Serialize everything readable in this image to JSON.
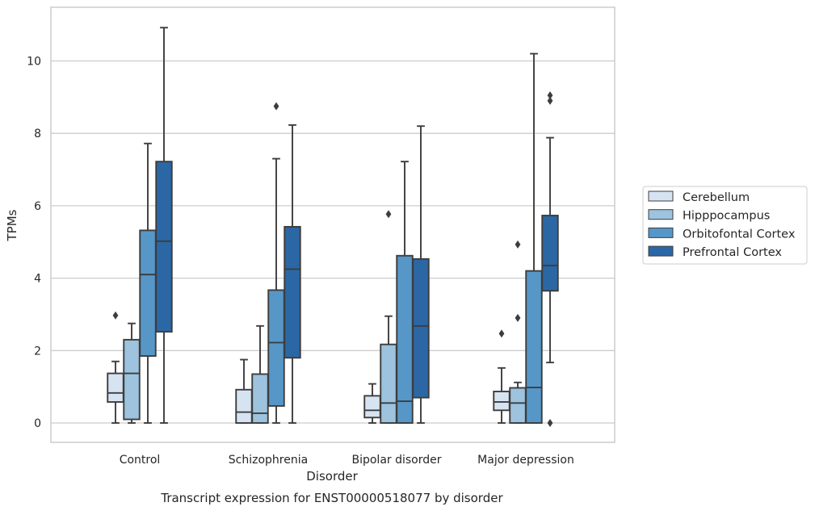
{
  "chart_data": {
    "type": "boxplot",
    "caption": "Transcript expression for ENST00000518077 by disorder",
    "xlabel": "Disorder",
    "ylabel": "TPMs",
    "ylim": [
      -0.5,
      11.5
    ],
    "yticks": [
      0,
      2,
      4,
      6,
      8,
      10
    ],
    "grid": "horizontal",
    "legend_position": "right",
    "categories": [
      "Control",
      "Schizophrenia",
      "Bipolar disorder",
      "Major depression"
    ],
    "series": [
      {
        "name": "Cerebellum",
        "color": "#d6e4f2",
        "boxes": [
          {
            "whisker_low": 0.0,
            "q1": 0.58,
            "median": 0.83,
            "q3": 1.37,
            "whisker_high": 1.7,
            "outliers": [
              2.97
            ]
          },
          {
            "whisker_low": 0.0,
            "q1": 0.0,
            "median": 0.3,
            "q3": 0.92,
            "whisker_high": 1.75,
            "outliers": []
          },
          {
            "whisker_low": 0.0,
            "q1": 0.15,
            "median": 0.35,
            "q3": 0.75,
            "whisker_high": 1.08,
            "outliers": []
          },
          {
            "whisker_low": 0.0,
            "q1": 0.35,
            "median": 0.58,
            "q3": 0.87,
            "whisker_high": 1.52,
            "outliers": [
              2.47
            ]
          }
        ]
      },
      {
        "name": "Hipppocampus",
        "color": "#9dc3de",
        "boxes": [
          {
            "whisker_low": 0.0,
            "q1": 0.1,
            "median": 1.37,
            "q3": 2.3,
            "whisker_high": 2.75,
            "outliers": []
          },
          {
            "whisker_low": 0.0,
            "q1": 0.0,
            "median": 0.27,
            "q3": 1.35,
            "whisker_high": 2.68,
            "outliers": []
          },
          {
            "whisker_low": 0.0,
            "q1": 0.0,
            "median": 0.55,
            "q3": 2.17,
            "whisker_high": 2.95,
            "outliers": [
              5.77
            ]
          },
          {
            "whisker_low": 0.0,
            "q1": 0.0,
            "median": 0.55,
            "q3": 0.97,
            "whisker_high": 1.12,
            "outliers": [
              2.9,
              4.93
            ]
          }
        ]
      },
      {
        "name": "Orbitofontal Cortex",
        "color": "#5697c8",
        "boxes": [
          {
            "whisker_low": 0.0,
            "q1": 1.85,
            "median": 4.1,
            "q3": 5.32,
            "whisker_high": 7.72,
            "outliers": []
          },
          {
            "whisker_low": 0.0,
            "q1": 0.47,
            "median": 2.22,
            "q3": 3.67,
            "whisker_high": 7.3,
            "outliers": [
              8.75
            ]
          },
          {
            "whisker_low": 0.0,
            "q1": 0.0,
            "median": 0.6,
            "q3": 4.62,
            "whisker_high": 7.22,
            "outliers": []
          },
          {
            "whisker_low": 0.0,
            "q1": 0.0,
            "median": 0.98,
            "q3": 4.2,
            "whisker_high": 10.2,
            "outliers": []
          }
        ]
      },
      {
        "name": "Prefrontal Cortex",
        "color": "#2b67a5",
        "boxes": [
          {
            "whisker_low": 0.0,
            "q1": 2.52,
            "median": 5.02,
            "q3": 7.22,
            "whisker_high": 10.92,
            "outliers": []
          },
          {
            "whisker_low": 0.0,
            "q1": 1.8,
            "median": 4.25,
            "q3": 5.42,
            "whisker_high": 8.23,
            "outliers": []
          },
          {
            "whisker_low": 0.0,
            "q1": 0.7,
            "median": 2.68,
            "q3": 4.53,
            "whisker_high": 8.2,
            "outliers": []
          },
          {
            "whisker_low": 1.67,
            "q1": 3.65,
            "median": 4.35,
            "q3": 5.73,
            "whisker_high": 7.88,
            "outliers": [
              0.0,
              8.9,
              9.05
            ]
          }
        ]
      }
    ]
  }
}
